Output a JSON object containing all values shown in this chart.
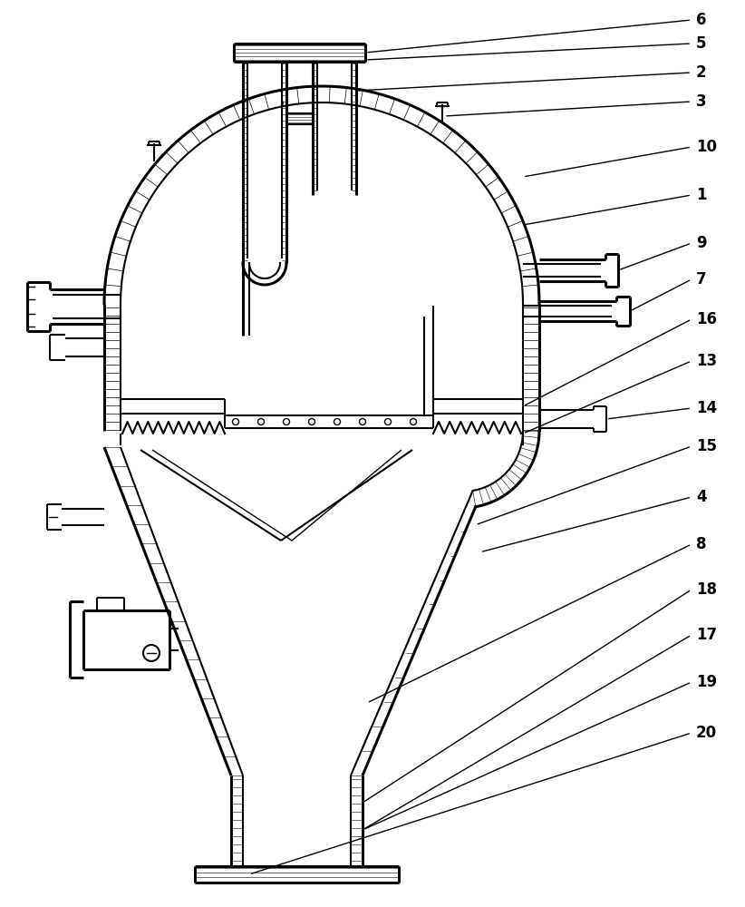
{
  "bg_color": "#ffffff",
  "line_color": "#000000",
  "figsize": [
    8.22,
    10.0
  ],
  "dpi": 100,
  "labels": [
    [
      "6",
      768,
      22
    ],
    [
      "5",
      768,
      48
    ],
    [
      "2",
      768,
      80
    ],
    [
      "3",
      768,
      112
    ],
    [
      "10",
      768,
      162
    ],
    [
      "1",
      768,
      215
    ],
    [
      "9",
      768,
      268
    ],
    [
      "7",
      768,
      308
    ],
    [
      "16",
      768,
      352
    ],
    [
      "13",
      768,
      398
    ],
    [
      "14",
      768,
      450
    ],
    [
      "15",
      768,
      492
    ],
    [
      "4",
      768,
      548
    ],
    [
      "8",
      768,
      600
    ],
    [
      "18",
      768,
      650
    ],
    [
      "17",
      768,
      700
    ],
    [
      "19",
      768,
      752
    ],
    [
      "20",
      768,
      808
    ]
  ]
}
